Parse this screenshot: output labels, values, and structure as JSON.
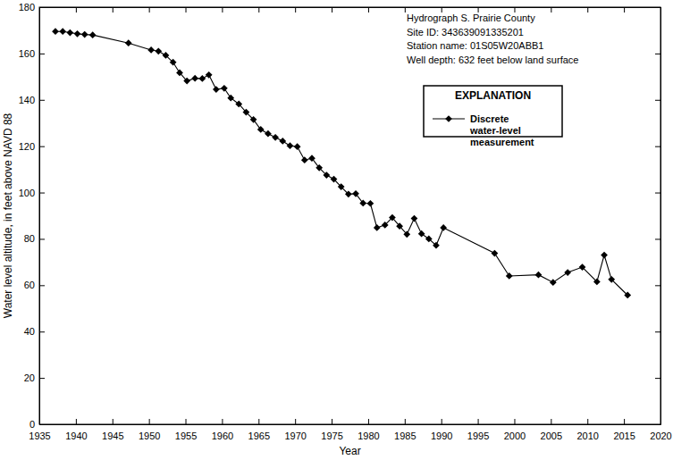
{
  "chart_data": {
    "type": "line",
    "x_label": "Year",
    "y_label": "Water level altitude, in feet above NAVD 88",
    "annotations": [
      "Hydrograph S. Prairie County",
      "Site ID: 343639091335201",
      "Station name: 01S05W20ABB1",
      "Well depth: 632 feet below land surface"
    ],
    "legend_title": "EXPLANATION",
    "legend": "upper right",
    "x": [
      1937.2,
      1938.2,
      1939.2,
      1940.2,
      1941.2,
      1942.3,
      1947.2,
      1950.3,
      1951.3,
      1952.3,
      1953.3,
      1954.2,
      1955.2,
      1956.3,
      1957.3,
      1958.2,
      1959.2,
      1960.3,
      1961.2,
      1962.3,
      1963.3,
      1964.3,
      1965.3,
      1966.3,
      1967.3,
      1968.3,
      1969.3,
      1970.3,
      1971.3,
      1972.3,
      1973.3,
      1974.3,
      1975.3,
      1976.3,
      1977.3,
      1978.3,
      1979.3,
      1980.3,
      1981.2,
      1982.3,
      1983.3,
      1984.3,
      1985.3,
      1986.3,
      1987.3,
      1988.3,
      1989.3,
      1990.3,
      1997.3,
      1999.3,
      2003.3,
      2005.3,
      2007.3,
      2009.3,
      2011.3,
      2012.3,
      2013.3,
      2015.5
    ],
    "series": [
      {
        "name": "Discrete water-level measurement",
        "color": "#000000",
        "marker": "diamond",
        "line_style": "solid",
        "values": [
          169.5,
          169.5,
          169,
          168.5,
          168.2,
          168,
          164.5,
          161.5,
          161,
          159.2,
          156.2,
          151.7,
          148.2,
          149.3,
          149.2,
          150.8,
          144.5,
          145,
          140.8,
          138.2,
          134.7,
          131.5,
          127.2,
          125.4,
          123.8,
          122.2,
          120.2,
          119.8,
          114,
          114.8,
          110.7,
          107.5,
          105.8,
          102.5,
          99.3,
          99.5,
          95.4,
          95.3,
          84.8,
          86,
          89.2,
          85.5,
          82,
          88.8,
          82.2,
          80,
          77.2,
          84.8,
          73.8,
          64,
          64.5,
          61.2,
          65.5,
          67.8,
          61.5,
          73,
          62.5,
          55.7
        ]
      }
    ],
    "xlim": [
      1935,
      2020
    ],
    "xticks": [
      1935,
      1940,
      1945,
      1950,
      1955,
      1960,
      1965,
      1970,
      1975,
      1980,
      1985,
      1990,
      1995,
      2000,
      2005,
      2010,
      2015,
      2020
    ],
    "ylim": [
      0,
      180
    ],
    "yticks": [
      0,
      20,
      40,
      60,
      80,
      100,
      120,
      140,
      160,
      180
    ],
    "grid": false
  }
}
